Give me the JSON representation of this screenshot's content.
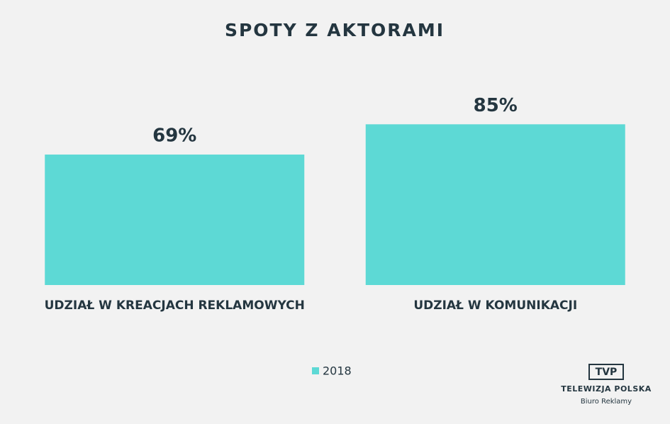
{
  "chart_data": {
    "type": "bar",
    "title": "SPOTY Z AKTORAMI",
    "categories": [
      "UDZIAŁ W KREACJACH REKLAMOWYCH",
      "UDZIAŁ W KOMUNIKACJI"
    ],
    "series": [
      {
        "name": "2018",
        "color": "#5dd9d5",
        "values": [
          69,
          85
        ],
        "value_labels": [
          "69%",
          "85%"
        ]
      }
    ],
    "legend": "bottom"
  },
  "logo": {
    "mark": "TVP",
    "name": "TELEWIZJA POLSKA",
    "tagline": "Biuro Reklamy"
  }
}
